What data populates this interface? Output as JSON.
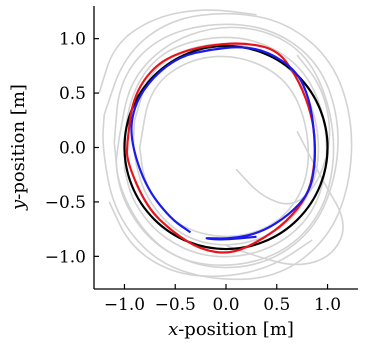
{
  "chart_data": {
    "type": "line",
    "xlabel_var": "x",
    "xlabel_rest": "-position [m]",
    "ylabel_var": "y",
    "ylabel_rest": "-position [m]",
    "xlim": [
      -1.3,
      1.3
    ],
    "ylim": [
      -1.3,
      1.3
    ],
    "xticks": [
      -1.0,
      -0.5,
      0.0,
      0.5,
      1.0
    ],
    "xtick_labels": [
      "−1.0",
      "−0.5",
      "0.0",
      "0.5",
      "1.0"
    ],
    "yticks": [
      1.0,
      0.5,
      0.0,
      -0.5,
      -1.0
    ],
    "ytick_labels": [
      "1.0",
      "0.5",
      "0.0",
      "−0.5",
      "−1.0"
    ],
    "grid": false,
    "colors": {
      "reference": "#000000",
      "red": "#e8141c",
      "blue": "#1a1aee",
      "gray": "#d3d3d3"
    },
    "series": [
      {
        "color": "#000000",
        "type": "circle",
        "radius": 1.0,
        "center": [
          0.0,
          0.0
        ]
      },
      {
        "color": "#e8141c",
        "points": [
          [
            -0.97,
            0.05
          ],
          [
            -0.92,
            0.45
          ],
          [
            -0.72,
            0.74
          ],
          [
            -0.45,
            0.88
          ],
          [
            -0.1,
            0.95
          ],
          [
            0.2,
            0.96
          ],
          [
            0.5,
            0.9
          ],
          [
            0.68,
            0.68
          ],
          [
            0.82,
            0.38
          ],
          [
            0.88,
            0.1
          ],
          [
            0.87,
            -0.2
          ],
          [
            0.8,
            -0.45
          ],
          [
            0.6,
            -0.68
          ],
          [
            0.35,
            -0.85
          ],
          [
            0.05,
            -0.98
          ],
          [
            -0.25,
            -0.94
          ],
          [
            -0.52,
            -0.78
          ],
          [
            -0.78,
            -0.55
          ],
          [
            -0.98,
            -0.12
          ],
          [
            -0.97,
            0.05
          ]
        ]
      },
      {
        "color": "#1a1aee",
        "points": [
          [
            -0.35,
            -0.78
          ],
          [
            -0.55,
            -0.65
          ],
          [
            -0.8,
            -0.35
          ],
          [
            -0.95,
            0.1
          ],
          [
            -0.9,
            0.4
          ],
          [
            -0.72,
            0.65
          ],
          [
            -0.45,
            0.84
          ],
          [
            -0.15,
            0.9
          ],
          [
            0.15,
            0.93
          ],
          [
            0.42,
            0.88
          ],
          [
            0.7,
            0.7
          ],
          [
            0.82,
            0.45
          ],
          [
            0.87,
            0.15
          ],
          [
            0.88,
            -0.15
          ],
          [
            0.82,
            -0.42
          ],
          [
            0.62,
            -0.62
          ],
          [
            0.35,
            -0.78
          ],
          [
            0.05,
            -0.84
          ],
          [
            -0.25,
            -0.83
          ],
          [
            -0.05,
            -0.85
          ],
          [
            0.3,
            -0.82
          ]
        ]
      },
      {
        "color": "#d3d3d3",
        "points": [
          [
            -1.05,
            0.1
          ],
          [
            -0.95,
            0.6
          ],
          [
            -0.6,
            0.95
          ],
          [
            -0.1,
            1.12
          ],
          [
            0.4,
            1.08
          ],
          [
            0.8,
            0.85
          ],
          [
            1.02,
            0.4
          ],
          [
            1.08,
            -0.1
          ],
          [
            0.95,
            -0.6
          ],
          [
            0.6,
            -0.95
          ],
          [
            0.1,
            -1.1
          ],
          [
            -0.45,
            -1.05
          ],
          [
            -0.85,
            -0.75
          ],
          [
            -1.1,
            -0.25
          ],
          [
            -1.05,
            0.1
          ]
        ]
      },
      {
        "color": "#d3d3d3",
        "points": [
          [
            -0.85,
            0.0
          ],
          [
            -0.75,
            0.55
          ],
          [
            -0.35,
            0.82
          ],
          [
            0.15,
            0.85
          ],
          [
            0.62,
            0.62
          ],
          [
            0.82,
            0.15
          ],
          [
            0.8,
            -0.35
          ],
          [
            0.5,
            -0.72
          ],
          [
            0.0,
            -0.85
          ],
          [
            -0.5,
            -0.72
          ],
          [
            -0.8,
            -0.35
          ],
          [
            -0.85,
            0.0
          ]
        ]
      },
      {
        "color": "#d3d3d3",
        "points": [
          [
            -1.2,
            0.3
          ],
          [
            -1.0,
            0.85
          ],
          [
            -0.55,
            1.18
          ],
          [
            0.05,
            1.25
          ],
          [
            0.6,
            1.15
          ],
          [
            1.05,
            0.8
          ],
          [
            1.25,
            0.25
          ],
          [
            1.22,
            -0.35
          ],
          [
            1.0,
            -0.85
          ],
          [
            0.5,
            -1.2
          ],
          [
            -0.15,
            -1.22
          ],
          [
            -0.7,
            -1.05
          ],
          [
            -1.1,
            -0.6
          ],
          [
            -1.22,
            0.0
          ],
          [
            -1.2,
            0.3
          ]
        ]
      },
      {
        "color": "#d3d3d3",
        "points": [
          [
            -1.0,
            -0.2
          ],
          [
            -0.98,
            0.4
          ],
          [
            -0.7,
            0.85
          ],
          [
            -0.2,
            1.02
          ],
          [
            0.3,
            1.0
          ],
          [
            0.75,
            0.75
          ],
          [
            0.98,
            0.3
          ],
          [
            1.0,
            -0.25
          ],
          [
            0.8,
            -0.7
          ],
          [
            0.35,
            -0.98
          ],
          [
            -0.2,
            -1.02
          ],
          [
            -0.65,
            -0.82
          ],
          [
            -0.92,
            -0.5
          ],
          [
            -1.0,
            -0.2
          ]
        ]
      },
      {
        "color": "#d3d3d3",
        "points": [
          [
            -1.1,
            0.05
          ],
          [
            -1.05,
            0.62
          ],
          [
            -0.7,
            1.0
          ],
          [
            -0.15,
            1.15
          ],
          [
            0.45,
            1.1
          ],
          [
            0.92,
            0.78
          ],
          [
            1.12,
            0.25
          ],
          [
            1.08,
            -0.3
          ],
          [
            0.85,
            -0.78
          ],
          [
            0.38,
            -1.08
          ],
          [
            -0.2,
            -1.12
          ],
          [
            -0.72,
            -0.9
          ],
          [
            -1.05,
            -0.45
          ],
          [
            -1.1,
            0.05
          ]
        ]
      },
      {
        "color": "#d3d3d3",
        "points": [
          [
            -0.9,
            0.25
          ],
          [
            -0.75,
            0.72
          ],
          [
            -0.3,
            0.95
          ],
          [
            0.25,
            0.95
          ],
          [
            0.7,
            0.7
          ],
          [
            0.92,
            0.2
          ],
          [
            0.9,
            -0.3
          ],
          [
            0.62,
            -0.72
          ],
          [
            0.12,
            -0.92
          ],
          [
            -0.4,
            -0.85
          ],
          [
            -0.78,
            -0.5
          ],
          [
            -0.92,
            -0.05
          ],
          [
            -0.9,
            0.25
          ]
        ]
      },
      {
        "color": "#d3d3d3",
        "points": [
          [
            0.7,
            0.15
          ],
          [
            0.95,
            -0.3
          ],
          [
            1.2,
            -0.7
          ],
          [
            1.05,
            -1.0
          ],
          [
            0.7,
            -1.1
          ],
          [
            0.3,
            -1.0
          ],
          [
            0.0,
            -0.9
          ]
        ]
      },
      {
        "color": "#d3d3d3",
        "points": [
          [
            0.1,
            -0.2
          ],
          [
            0.35,
            -0.45
          ],
          [
            0.65,
            -0.55
          ],
          [
            0.9,
            -0.35
          ],
          [
            1.05,
            0.1
          ],
          [
            0.95,
            0.55
          ],
          [
            0.7,
            0.85
          ]
        ]
      },
      {
        "color": "#d3d3d3",
        "points": [
          [
            -1.15,
            -0.5
          ],
          [
            -0.95,
            -0.9
          ],
          [
            -0.55,
            -1.15
          ],
          [
            -0.05,
            -1.2
          ],
          [
            0.45,
            -1.1
          ],
          [
            0.85,
            -0.85
          ]
        ]
      },
      {
        "color": "#d3d3d3",
        "points": [
          [
            -1.25,
            0.5
          ],
          [
            -1.1,
            0.95
          ],
          [
            -0.7,
            1.2
          ],
          [
            -0.2,
            1.28
          ],
          [
            0.3,
            1.22
          ]
        ]
      }
    ]
  }
}
